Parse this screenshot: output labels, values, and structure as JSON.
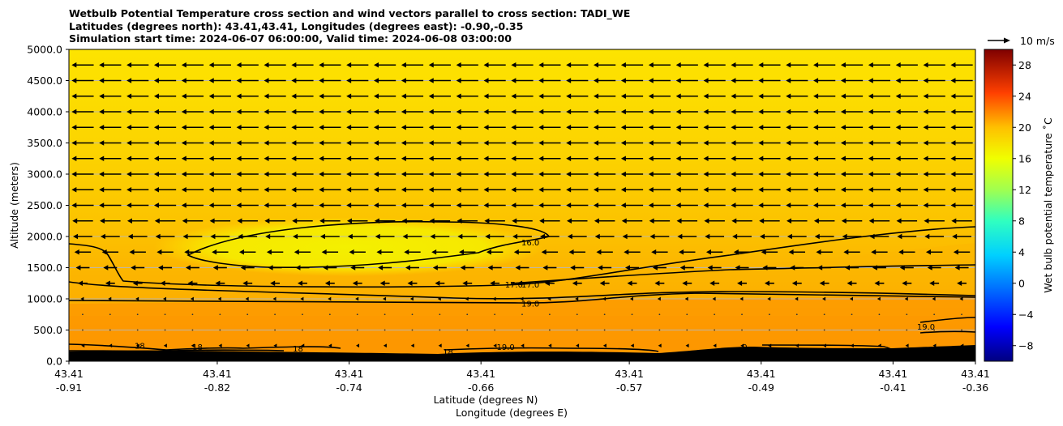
{
  "title_lines": [
    "Wetbulb Potential Temperature cross section and wind vectors parallel to cross section: TADI_WE",
    "Latitudes (degrees north): 43.41,43.41, Longitudes (degrees east): -0.90,-0.35",
    "Simulation start time: 2024-06-07 06:00:00, Valid time: 2024-06-08 03:00:00"
  ],
  "chart_data": {
    "type": "contour-cross-section",
    "title": "Wetbulb Potential Temperature cross section and wind vectors parallel to cross section: TADI_WE",
    "ylabel": "Altitude (meters)",
    "xlabel_lat": "Latitude (degrees N)",
    "xlabel_lon": "Longitude (degrees E)",
    "ylim": [
      0,
      5000
    ],
    "xlim": [
      -0.91,
      -0.36
    ],
    "yticks": [
      "0.0",
      "500.0",
      "1000.0",
      "1500.0",
      "2000.0",
      "2500.0",
      "3000.0",
      "3500.0",
      "4000.0",
      "4500.0",
      "5000.0"
    ],
    "xticks_lat": [
      "43.41",
      "43.41",
      "43.41",
      "43.41",
      "43.41",
      "43.41",
      "43.41",
      "43.41"
    ],
    "xticks_lon": [
      "-0.91",
      "-0.82",
      "-0.74",
      "-0.66",
      "-0.57",
      "-0.49",
      "-0.41",
      "-0.36"
    ],
    "xtick_values": [
      -0.91,
      -0.82,
      -0.74,
      -0.66,
      -0.57,
      -0.49,
      -0.41,
      -0.36
    ],
    "grid": "horizontal",
    "colorbar": {
      "label": "Wet bulb potential temperature ˚C",
      "min": -10,
      "max": 30,
      "ticks": [
        "−8",
        "−4",
        "0",
        "4",
        "8",
        "12",
        "16",
        "20",
        "24",
        "28"
      ],
      "tick_values": [
        -8,
        -4,
        0,
        4,
        8,
        12,
        16,
        20,
        24,
        28
      ]
    },
    "contour_labels": [
      {
        "text": "16.0",
        "x": -0.63,
        "alt": 1900
      },
      {
        "text": "17.0",
        "x": -0.64,
        "alt": 1225
      },
      {
        "text": "17.0",
        "x": -0.63,
        "alt": 1225
      },
      {
        "text": "19.0",
        "x": -0.63,
        "alt": 925
      },
      {
        "text": "19.0",
        "x": -0.645,
        "alt": 225
      },
      {
        "text": "19.0",
        "x": -0.39,
        "alt": 550
      },
      {
        "text": "18",
        "x": -0.867,
        "alt": 250
      },
      {
        "text": "18",
        "x": -0.832,
        "alt": 230
      },
      {
        "text": "18",
        "x": -0.771,
        "alt": 200
      },
      {
        "text": "18",
        "x": -0.68,
        "alt": 150
      },
      {
        "text": "0",
        "x": -0.5,
        "alt": 230
      }
    ],
    "wind_rows": [
      {
        "alt": 4750,
        "speed": 8
      },
      {
        "alt": 4500,
        "speed": 8
      },
      {
        "alt": 4250,
        "speed": 8
      },
      {
        "alt": 4000,
        "speed": 8
      },
      {
        "alt": 3750,
        "speed": 8
      },
      {
        "alt": 3500,
        "speed": 8
      },
      {
        "alt": 3250,
        "speed": 8
      },
      {
        "alt": 3000,
        "speed": 8
      },
      {
        "alt": 2750,
        "speed": 8
      },
      {
        "alt": 2500,
        "speed": 8
      },
      {
        "alt": 2250,
        "speed": 7.5
      },
      {
        "alt": 2000,
        "speed": 7
      },
      {
        "alt": 1750,
        "speed": 6
      },
      {
        "alt": 1500,
        "speed": 5
      },
      {
        "alt": 1250,
        "speed": 3.5
      },
      {
        "alt": 1000,
        "speed": 1.5
      },
      {
        "alt": 750,
        "speed": 0.3
      },
      {
        "alt": 500,
        "speed": 0.3
      },
      {
        "alt": 250,
        "speed": 1.0
      }
    ],
    "wind_ref": {
      "label": "10 m/s",
      "speed": 10
    }
  }
}
